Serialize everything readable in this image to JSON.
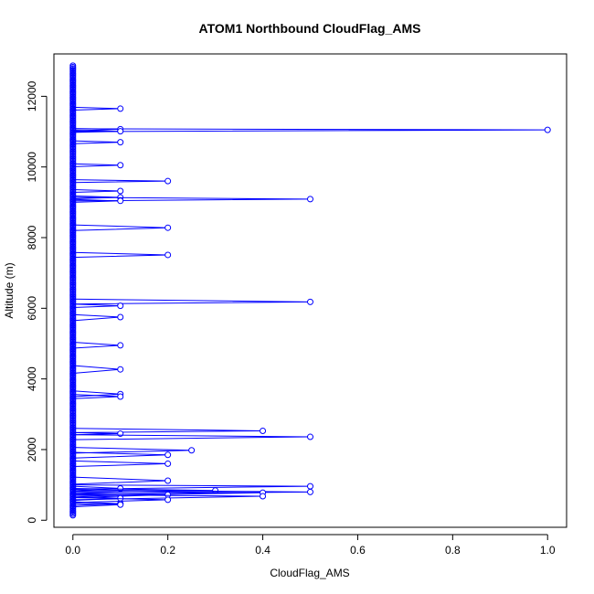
{
  "chart_data": {
    "type": "line",
    "title": "ATOM1 Northbound CloudFlag_AMS",
    "xlabel": "CloudFlag_AMS",
    "ylabel": "Altitude (m)",
    "xlim": [
      -0.04,
      1.04
    ],
    "ylim": [
      -200,
      13200
    ],
    "xticks": [
      0,
      0.2,
      0.4,
      0.6,
      0.8,
      1
    ],
    "xtick_labels": [
      "0.0",
      "0.2",
      "0.4",
      "0.6",
      "0.8",
      "1.0"
    ],
    "yticks": [
      0,
      2000,
      4000,
      6000,
      8000,
      10000,
      12000
    ],
    "ytick_labels": [
      "0",
      "2000",
      "4000",
      "6000",
      "8000",
      "10000",
      "12000"
    ],
    "grid": false,
    "series": [
      {
        "style": "line+points",
        "line_color": "#0000ff",
        "point_color": "#0000ff",
        "zero_column_range": [
          140,
          12880
        ],
        "excursions": [
          {
            "low": 11610,
            "high": 11690,
            "peak": [
              0.1,
              11650
            ]
          },
          {
            "low": 11000,
            "high": 11080,
            "peak": [
              1.0,
              11050
            ]
          },
          {
            "low": 11020,
            "high": 11090,
            "peak": [
              0.1,
              11070
            ]
          },
          {
            "low": 10980,
            "high": 11040,
            "peak": [
              0.1,
              11010
            ]
          },
          {
            "low": 10660,
            "high": 10740,
            "peak": [
              0.1,
              10700
            ]
          },
          {
            "low": 10010,
            "high": 10090,
            "peak": [
              0.1,
              10050
            ]
          },
          {
            "low": 9560,
            "high": 9640,
            "peak": [
              0.2,
              9600
            ]
          },
          {
            "low": 9280,
            "high": 9360,
            "peak": [
              0.1,
              9320
            ]
          },
          {
            "low": 9100,
            "high": 9180,
            "peak": [
              0.1,
              9140
            ]
          },
          {
            "low": 9040,
            "high": 9140,
            "peak": [
              0.5,
              9090
            ]
          },
          {
            "low": 9000,
            "high": 9080,
            "peak": [
              0.1,
              9040
            ]
          },
          {
            "low": 8200,
            "high": 8360,
            "peak": [
              0.2,
              8280
            ]
          },
          {
            "low": 7440,
            "high": 7580,
            "peak": [
              0.2,
              7510
            ]
          },
          {
            "low": 6120,
            "high": 6260,
            "peak": [
              0.5,
              6180
            ]
          },
          {
            "low": 6020,
            "high": 6120,
            "peak": [
              0.1,
              6070
            ]
          },
          {
            "low": 5650,
            "high": 5820,
            "peak": [
              0.1,
              5750
            ]
          },
          {
            "low": 4870,
            "high": 5040,
            "peak": [
              0.1,
              4950
            ]
          },
          {
            "low": 4160,
            "high": 4380,
            "peak": [
              0.1,
              4270
            ]
          },
          {
            "low": 3500,
            "high": 3660,
            "peak": [
              0.1,
              3570
            ]
          },
          {
            "low": 3440,
            "high": 3560,
            "peak": [
              0.1,
              3500
            ]
          },
          {
            "low": 2480,
            "high": 2600,
            "peak": [
              0.4,
              2530
            ]
          },
          {
            "low": 2420,
            "high": 2480,
            "peak": [
              0.1,
              2450
            ]
          },
          {
            "low": 2280,
            "high": 2420,
            "peak": [
              0.5,
              2360
            ]
          },
          {
            "low": 1900,
            "high": 2060,
            "peak": [
              0.25,
              1980
            ]
          },
          {
            "low": 1760,
            "high": 1920,
            "peak": [
              0.2,
              1850
            ]
          },
          {
            "low": 1520,
            "high": 1680,
            "peak": [
              0.2,
              1600
            ]
          },
          {
            "low": 1020,
            "high": 1220,
            "peak": [
              0.2,
              1120
            ]
          },
          {
            "low": 880,
            "high": 1000,
            "peak": [
              0.5,
              960
            ]
          },
          {
            "low": 820,
            "high": 960,
            "peak": [
              0.1,
              900
            ]
          },
          {
            "low": 780,
            "high": 900,
            "peak": [
              0.3,
              840
            ]
          },
          {
            "low": 740,
            "high": 860,
            "peak": [
              0.5,
              800
            ]
          },
          {
            "low": 680,
            "high": 820,
            "peak": [
              0.4,
              780
            ]
          },
          {
            "low": 640,
            "high": 780,
            "peak": [
              0.2,
              720
            ]
          },
          {
            "low": 580,
            "high": 720,
            "peak": [
              0.4,
              680
            ]
          },
          {
            "low": 560,
            "high": 680,
            "peak": [
              0.1,
              620
            ]
          },
          {
            "low": 500,
            "high": 640,
            "peak": [
              0.2,
              580
            ]
          },
          {
            "low": 420,
            "high": 520,
            "peak": [
              0.1,
              470
            ]
          },
          {
            "low": 380,
            "high": 480,
            "peak": [
              0.1,
              440
            ]
          }
        ]
      }
    ]
  }
}
